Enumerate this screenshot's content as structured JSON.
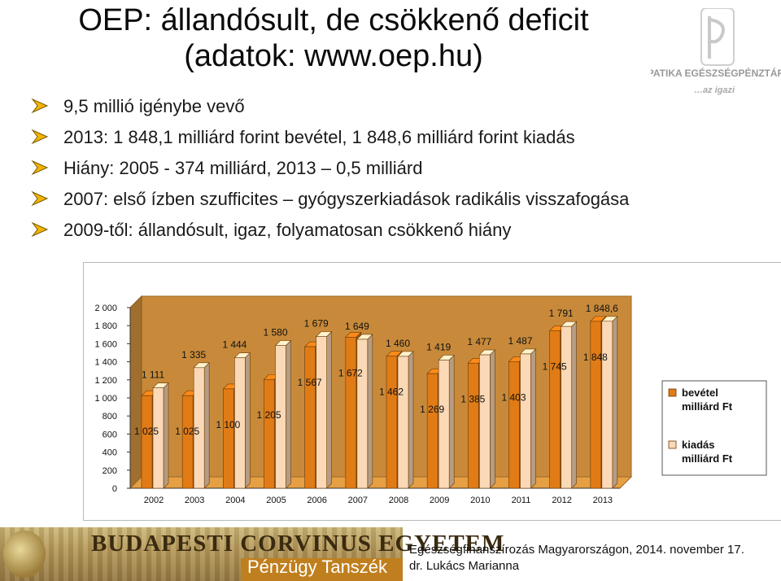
{
  "slide": {
    "title_line1": "OEP: állandósult, de csökkenő deficit",
    "title_line2": "(adatok: www.oep.hu)",
    "bullets": [
      "9,5 millió igénybe vevő",
      "2013: 1 848,1 milliárd forint bevétel, 1 848,6 milliárd forint kiadás",
      "Hiány: 2005 - 374 milliárd, 2013 – 0,5 milliárd",
      "2007: első ízben szufficites – gyógyszerkiadások radikális visszafogása",
      "2009-től: állandósult, igaz, folyamatosan csökkenő hiány"
    ],
    "logo": {
      "text1": "PATIKA EGÉSZSÉGPÉNZTÁR",
      "text2": "…az igazi"
    }
  },
  "chart_data": {
    "type": "bar",
    "title": "",
    "xlabel": "",
    "ylabel": "",
    "ylim": [
      0,
      2000
    ],
    "yticks": [
      "0",
      "200",
      "400",
      "600",
      "800",
      "1 000",
      "1 200",
      "1 400",
      "1 600",
      "1 800",
      "2 000"
    ],
    "categories": [
      "2002",
      "2003",
      "2004",
      "2005",
      "2006",
      "2007",
      "2008",
      "2009",
      "2010",
      "2011",
      "2012",
      "2013"
    ],
    "series": [
      {
        "name": "bevétel milliárd Ft",
        "name_line1": "bevétel",
        "name_line2": "milliárd Ft",
        "color": "#e07b16",
        "values": [
          1025,
          1025,
          1100,
          1205,
          1567,
          1672,
          1462,
          1269,
          1385,
          1403,
          1745,
          1848
        ],
        "labels": [
          "1 025",
          "1 025",
          "1 100",
          "1 205",
          "1 567",
          "1 672",
          "1 462",
          "1 269",
          "1 385",
          "1 403",
          "1 745",
          "1 848"
        ]
      },
      {
        "name": "kiadás milliárd Ft",
        "name_line1": "kiadás",
        "name_line2": "milliárd Ft",
        "color": "#fbd9b6",
        "values": [
          1111,
          1335,
          1444,
          1580,
          1679,
          1649,
          1460,
          1419,
          1477,
          1487,
          1791,
          1848.6
        ],
        "labels": [
          "1 111",
          "1 335",
          "1 444",
          "1 580",
          "1 679",
          "1 649",
          "1 460",
          "1 419",
          "1 477",
          "1 487",
          "1 791",
          "1 848,6"
        ]
      }
    ],
    "legend_position": "right",
    "grid": false,
    "three_d": true,
    "wall_color": "#c88a3a"
  },
  "footer": {
    "university": "BUDAPESTI CORVINUS EGYETEM",
    "department": "Pénzügy Tanszék",
    "line1": "Egészségfinanszírozás Magyarországon, 2014. november 17.",
    "line2": "dr. Lukács Marianna"
  }
}
